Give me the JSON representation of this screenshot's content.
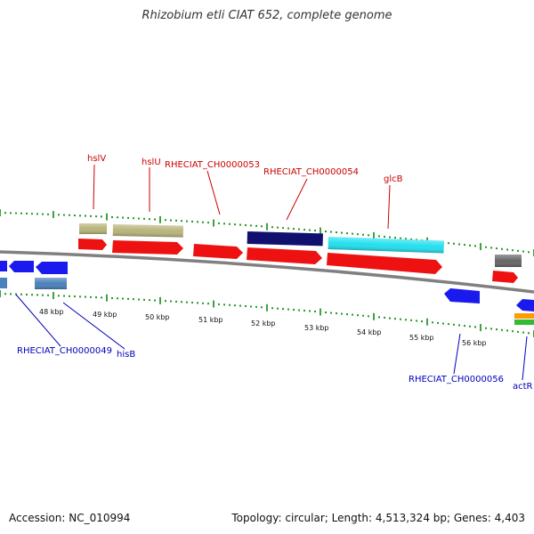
{
  "title": "Rhizobium etli CIAT 652, complete genome",
  "footer": {
    "accession": "Accession: NC_010994",
    "summary": "Topology: circular; Length: 4,513,324 bp; Genes: 4,403"
  },
  "colors": {
    "backbone": "#808080",
    "tick": "#118811",
    "label_top": "#cc0000",
    "label_bottom": "#0000bb",
    "feature_red": "#ee1111",
    "feature_blue": "#1a1aee",
    "feature_khaki": "#b8b47a",
    "feature_navy": "#10106e",
    "feature_cyan": "#22e0ee",
    "feature_gray": "#666666",
    "feature_steel": "#4a80bb",
    "feature_orange": "#ff9a00",
    "feature_green": "#33bb33"
  },
  "kbp_labels": [
    "48 kbp",
    "49 kbp",
    "50 kbp",
    "51 kbp",
    "52 kbp",
    "53 kbp",
    "54 kbp",
    "55 kbp",
    "56 kbp"
  ],
  "top_labels": [
    "hslV",
    "hslU",
    "RHECIAT_CH0000053",
    "RHECIAT_CH0000054",
    "glcB"
  ],
  "bottom_labels": [
    "RHECIAT_CH0000049",
    "hisB",
    "RHECIAT_CH0000056",
    "actR"
  ]
}
